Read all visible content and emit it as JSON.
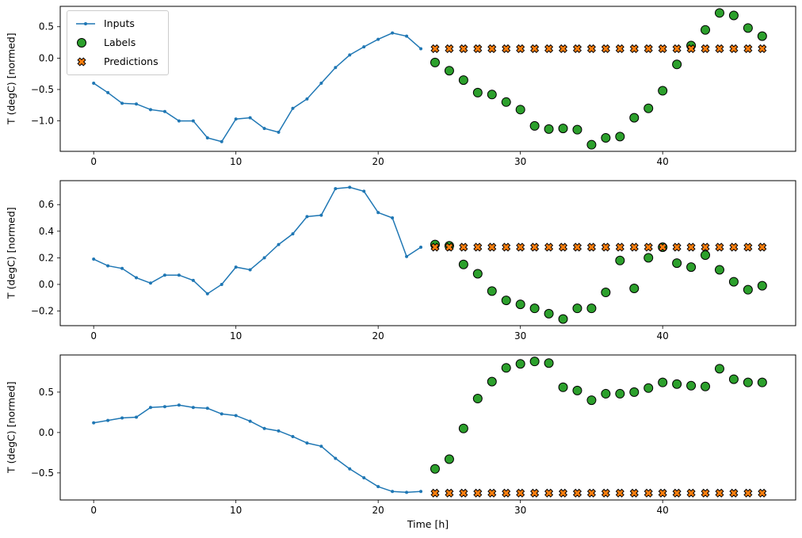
{
  "figure": {
    "background": "#ffffff"
  },
  "chart_data": [
    {
      "type": "line",
      "title": "",
      "xlabel": "",
      "ylabel": "T (degC) [normed]",
      "xlim": [
        -2.35,
        49.35
      ],
      "ylim": [
        -1.485,
        0.825
      ],
      "xticks": [
        0,
        10,
        20,
        30,
        40
      ],
      "yticks": [
        0.5,
        0.0,
        -0.5,
        -1.0
      ],
      "grid": false,
      "legend_position": "upper left",
      "series": [
        {
          "name": "Inputs",
          "style": "line-dot",
          "color": "#1f77b4",
          "edge": "#1f77b4",
          "x": [
            0,
            1,
            2,
            3,
            4,
            5,
            6,
            7,
            8,
            9,
            10,
            11,
            12,
            13,
            14,
            15,
            16,
            17,
            18,
            19,
            20,
            21,
            22,
            23
          ],
          "values": [
            -0.4,
            -0.55,
            -0.72,
            -0.73,
            -0.82,
            -0.85,
            -1.0,
            -1.0,
            -1.27,
            -1.33,
            -0.97,
            -0.95,
            -1.12,
            -1.18,
            -0.8,
            -0.65,
            -0.4,
            -0.15,
            0.05,
            0.18,
            0.3,
            0.4,
            0.35,
            0.15
          ]
        },
        {
          "name": "Labels",
          "style": "circle",
          "color": "#2ca02c",
          "edge": "#000000",
          "x": [
            24,
            25,
            26,
            27,
            28,
            29,
            30,
            31,
            32,
            33,
            34,
            35,
            36,
            37,
            38,
            39,
            40,
            41,
            42,
            43,
            44,
            45,
            46,
            47
          ],
          "values": [
            -0.07,
            -0.2,
            -0.35,
            -0.55,
            -0.58,
            -0.7,
            -0.82,
            -1.08,
            -1.13,
            -1.12,
            -1.14,
            -1.38,
            -1.27,
            -1.25,
            -0.95,
            -0.8,
            -0.52,
            -0.1,
            0.2,
            0.45,
            0.72,
            0.68,
            0.48,
            0.35
          ]
        },
        {
          "name": "Predictions",
          "style": "x",
          "color": "#ff7f0e",
          "edge": "#000000",
          "x": [
            24,
            25,
            26,
            27,
            28,
            29,
            30,
            31,
            32,
            33,
            34,
            35,
            36,
            37,
            38,
            39,
            40,
            41,
            42,
            43,
            44,
            45,
            46,
            47
          ],
          "values": [
            0.15,
            0.15,
            0.15,
            0.15,
            0.15,
            0.15,
            0.15,
            0.15,
            0.15,
            0.15,
            0.15,
            0.15,
            0.15,
            0.15,
            0.15,
            0.15,
            0.15,
            0.15,
            0.15,
            0.15,
            0.15,
            0.15,
            0.15,
            0.15
          ]
        }
      ]
    },
    {
      "type": "line",
      "title": "",
      "xlabel": "",
      "ylabel": "T (degC) [normed]",
      "xlim": [
        -2.35,
        49.35
      ],
      "ylim": [
        -0.31,
        0.78
      ],
      "xticks": [
        0,
        10,
        20,
        30,
        40
      ],
      "yticks": [
        0.6,
        0.4,
        0.2,
        0.0,
        -0.2
      ],
      "grid": false,
      "series": [
        {
          "name": "Inputs",
          "style": "line-dot",
          "color": "#1f77b4",
          "edge": "#1f77b4",
          "x": [
            0,
            1,
            2,
            3,
            4,
            5,
            6,
            7,
            8,
            9,
            10,
            11,
            12,
            13,
            14,
            15,
            16,
            17,
            18,
            19,
            20,
            21,
            22,
            23
          ],
          "values": [
            0.19,
            0.14,
            0.12,
            0.05,
            0.01,
            0.07,
            0.07,
            0.03,
            -0.07,
            0.0,
            0.13,
            0.11,
            0.2,
            0.3,
            0.38,
            0.51,
            0.52,
            0.72,
            0.73,
            0.7,
            0.54,
            0.5,
            0.21,
            0.28
          ]
        },
        {
          "name": "Labels",
          "style": "circle",
          "color": "#2ca02c",
          "edge": "#000000",
          "x": [
            24,
            25,
            26,
            27,
            28,
            29,
            30,
            31,
            32,
            33,
            34,
            35,
            36,
            37,
            38,
            39,
            40,
            41,
            42,
            43,
            44,
            45,
            46,
            47
          ],
          "values": [
            0.3,
            0.29,
            0.15,
            0.08,
            -0.05,
            -0.12,
            -0.15,
            -0.18,
            -0.22,
            -0.26,
            -0.18,
            -0.18,
            -0.06,
            0.18,
            -0.03,
            0.2,
            0.28,
            0.16,
            0.13,
            0.22,
            0.11,
            0.02,
            -0.04,
            -0.01
          ]
        },
        {
          "name": "Predictions",
          "style": "x",
          "color": "#ff7f0e",
          "edge": "#000000",
          "x": [
            24,
            25,
            26,
            27,
            28,
            29,
            30,
            31,
            32,
            33,
            34,
            35,
            36,
            37,
            38,
            39,
            40,
            41,
            42,
            43,
            44,
            45,
            46,
            47
          ],
          "values": [
            0.28,
            0.28,
            0.28,
            0.28,
            0.28,
            0.28,
            0.28,
            0.28,
            0.28,
            0.28,
            0.28,
            0.28,
            0.28,
            0.28,
            0.28,
            0.28,
            0.28,
            0.28,
            0.28,
            0.28,
            0.28,
            0.28,
            0.28,
            0.28
          ]
        }
      ]
    },
    {
      "type": "line",
      "title": "",
      "xlabel": "Time [h]",
      "ylabel": "T (degC) [normed]",
      "xlim": [
        -2.35,
        49.35
      ],
      "ylim": [
        -0.835,
        0.96
      ],
      "xticks": [
        0,
        10,
        20,
        30,
        40
      ],
      "yticks": [
        0.5,
        0.0,
        -0.5
      ],
      "grid": false,
      "series": [
        {
          "name": "Inputs",
          "style": "line-dot",
          "color": "#1f77b4",
          "edge": "#1f77b4",
          "x": [
            0,
            1,
            2,
            3,
            4,
            5,
            6,
            7,
            8,
            9,
            10,
            11,
            12,
            13,
            14,
            15,
            16,
            17,
            18,
            19,
            20,
            21,
            22,
            23
          ],
          "values": [
            0.12,
            0.15,
            0.18,
            0.19,
            0.31,
            0.32,
            0.34,
            0.31,
            0.3,
            0.23,
            0.21,
            0.14,
            0.05,
            0.02,
            -0.05,
            -0.13,
            -0.17,
            -0.32,
            -0.45,
            -0.56,
            -0.67,
            -0.73,
            -0.74,
            -0.73
          ]
        },
        {
          "name": "Labels",
          "style": "circle",
          "color": "#2ca02c",
          "edge": "#000000",
          "x": [
            24,
            25,
            26,
            27,
            28,
            29,
            30,
            31,
            32,
            33,
            34,
            35,
            36,
            37,
            38,
            39,
            40,
            41,
            42,
            43,
            44,
            45,
            46,
            47
          ],
          "values": [
            -0.45,
            -0.33,
            0.05,
            0.42,
            0.63,
            0.8,
            0.85,
            0.88,
            0.86,
            0.56,
            0.52,
            0.4,
            0.48,
            0.48,
            0.5,
            0.55,
            0.62,
            0.6,
            0.58,
            0.57,
            0.79,
            0.66,
            0.62,
            0.62
          ]
        },
        {
          "name": "Predictions",
          "style": "x",
          "color": "#ff7f0e",
          "edge": "#000000",
          "x": [
            24,
            25,
            26,
            27,
            28,
            29,
            30,
            31,
            32,
            33,
            34,
            35,
            36,
            37,
            38,
            39,
            40,
            41,
            42,
            43,
            44,
            45,
            46,
            47
          ],
          "values": [
            -0.75,
            -0.75,
            -0.75,
            -0.75,
            -0.75,
            -0.75,
            -0.75,
            -0.75,
            -0.75,
            -0.75,
            -0.75,
            -0.75,
            -0.75,
            -0.75,
            -0.75,
            -0.75,
            -0.75,
            -0.75,
            -0.75,
            -0.75,
            -0.75,
            -0.75,
            -0.75,
            -0.75
          ]
        }
      ]
    }
  ]
}
